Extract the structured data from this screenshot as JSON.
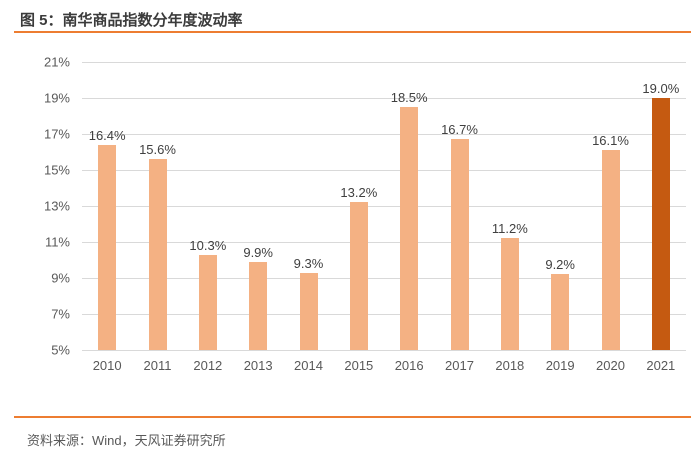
{
  "header": {
    "title": "图 5：南华商品指数分年度波动率"
  },
  "footer": {
    "source": "资料来源：Wind，天风证券研究所"
  },
  "colors": {
    "accent_rule": "#ed7d31",
    "bar": "#f4b183",
    "bar_highlight": "#c55a11",
    "gridline": "#d9d9d9",
    "tick_text": "#595959",
    "label_text": "#404040",
    "title_text": "#3b3b3b"
  },
  "chart_data": {
    "type": "bar",
    "title": "南华商品指数分年度波动率",
    "xlabel": "",
    "ylabel": "",
    "categories": [
      "2010",
      "2011",
      "2012",
      "2013",
      "2014",
      "2015",
      "2016",
      "2017",
      "2018",
      "2019",
      "2020",
      "2021"
    ],
    "values": [
      16.4,
      15.6,
      10.3,
      9.9,
      9.3,
      13.2,
      18.5,
      16.7,
      11.2,
      9.2,
      16.1,
      19.0
    ],
    "data_labels": [
      "16.4%",
      "15.6%",
      "10.3%",
      "9.9%",
      "9.3%",
      "13.2%",
      "18.5%",
      "16.7%",
      "11.2%",
      "9.2%",
      "16.1%",
      "19.0%"
    ],
    "highlight_index": 11,
    "ylim": [
      5,
      21
    ],
    "ytick_step": 2,
    "yticks": [
      "21%",
      "19%",
      "17%",
      "15%",
      "13%",
      "11%",
      "9%",
      "7%",
      "5%"
    ],
    "grid": "horizontal",
    "legend": "none"
  }
}
